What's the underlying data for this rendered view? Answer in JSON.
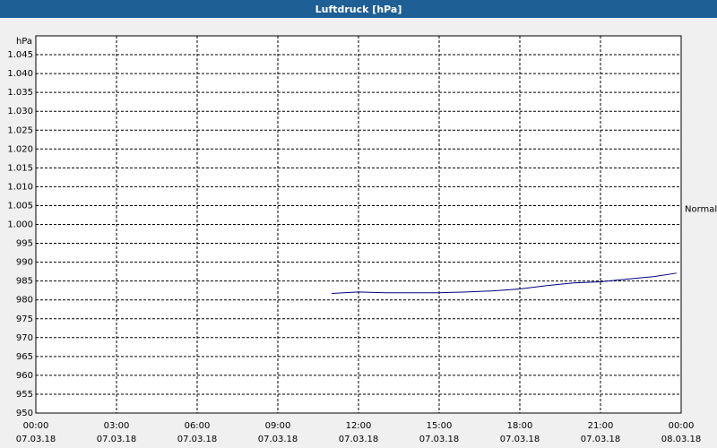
{
  "chart_data": {
    "type": "line",
    "title": "Luftdruck [hPa]",
    "y_label": "hPa",
    "annotation": {
      "text": "Normal",
      "y": 1004
    },
    "xlim": [
      0,
      24
    ],
    "xticks": [
      {
        "value": 0,
        "label": "00:00",
        "sublabel": "07.03.18"
      },
      {
        "value": 3,
        "label": "03:00",
        "sublabel": "07.03.18"
      },
      {
        "value": 6,
        "label": "06:00",
        "sublabel": "07.03.18"
      },
      {
        "value": 9,
        "label": "09:00",
        "sublabel": "07.03.18"
      },
      {
        "value": 12,
        "label": "12:00",
        "sublabel": "07.03.18"
      },
      {
        "value": 15,
        "label": "15:00",
        "sublabel": "07.03.18"
      },
      {
        "value": 18,
        "label": "18:00",
        "sublabel": "07.03.18"
      },
      {
        "value": 21,
        "label": "21:00",
        "sublabel": "07.03.18"
      },
      {
        "value": 24,
        "label": "00:00",
        "sublabel": "08.03.18"
      }
    ],
    "ylim": [
      950,
      1050
    ],
    "yticks": [
      950,
      955,
      960,
      965,
      970,
      975,
      980,
      985,
      990,
      995,
      {
        "value": 1000,
        "label": "1.000"
      },
      {
        "value": 1005,
        "label": "1.005"
      },
      {
        "value": 1010,
        "label": "1.010"
      },
      {
        "value": 1015,
        "label": "1.015"
      },
      {
        "value": 1020,
        "label": "1.020"
      },
      {
        "value": 1025,
        "label": "1.025"
      },
      {
        "value": 1030,
        "label": "1.030"
      },
      {
        "value": 1035,
        "label": "1.035"
      },
      {
        "value": 1040,
        "label": "1.040"
      },
      {
        "value": 1045,
        "label": "1.045"
      }
    ],
    "grid": true,
    "x": [
      11,
      12,
      13,
      14,
      15,
      16,
      17,
      18,
      19,
      20,
      21,
      22,
      23,
      23.83
    ],
    "series": [
      {
        "color": "#000080",
        "values": [
          981.7,
          982.1,
          981.9,
          981.9,
          981.9,
          982.1,
          982.4,
          982.9,
          983.8,
          984.5,
          984.8,
          985.5,
          986.2,
          987.1
        ]
      }
    ]
  }
}
